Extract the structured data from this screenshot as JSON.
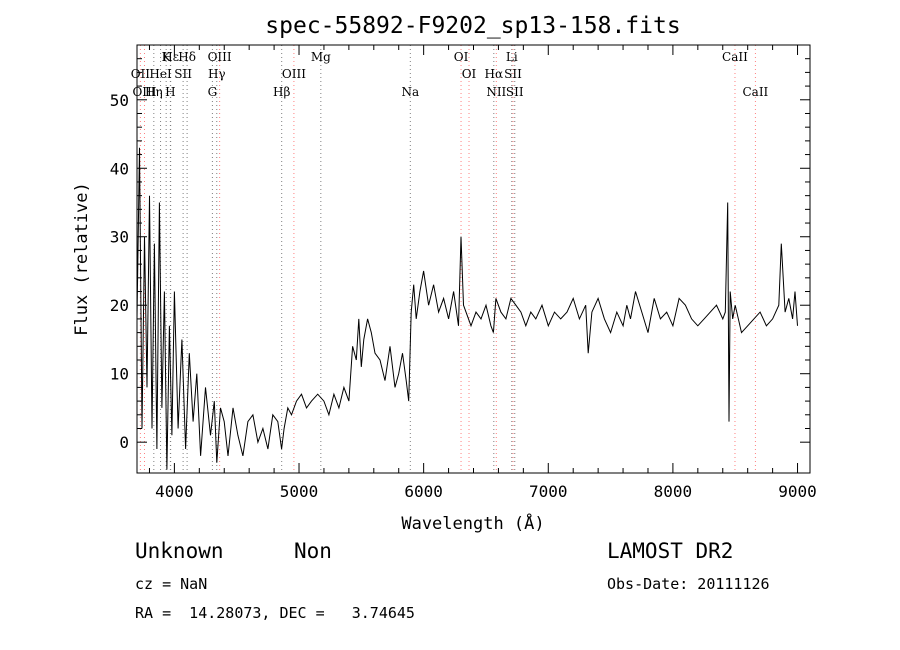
{
  "chart_data": {
    "type": "line",
    "title": "spec-55892-F9202_sp13-158.fits",
    "xlabel": "Wavelength (Å)",
    "ylabel": "Flux (relative)",
    "xlim": [
      3700,
      9100
    ],
    "ylim": [
      -4.5,
      58
    ],
    "xticks": [
      4000,
      5000,
      6000,
      7000,
      8000,
      9000
    ],
    "yticks": [
      0,
      10,
      20,
      30,
      40,
      50
    ],
    "grid": false,
    "series": [
      {
        "color": "#000000",
        "x": [
          3700,
          3720,
          3740,
          3760,
          3780,
          3800,
          3820,
          3840,
          3860,
          3880,
          3900,
          3920,
          3940,
          3960,
          3980,
          4000,
          4030,
          4060,
          4090,
          4120,
          4150,
          4180,
          4210,
          4250,
          4290,
          4320,
          4340,
          4370,
          4400,
          4430,
          4470,
          4510,
          4550,
          4590,
          4630,
          4670,
          4710,
          4750,
          4790,
          4830,
          4860,
          4880,
          4910,
          4940,
          4980,
          5020,
          5060,
          5100,
          5150,
          5200,
          5240,
          5280,
          5320,
          5360,
          5400,
          5430,
          5460,
          5480,
          5500,
          5520,
          5550,
          5580,
          5610,
          5650,
          5690,
          5730,
          5770,
          5800,
          5830,
          5860,
          5880,
          5900,
          5920,
          5940,
          5970,
          6000,
          6040,
          6080,
          6120,
          6160,
          6200,
          6240,
          6280,
          6300,
          6320,
          6340,
          6380,
          6420,
          6460,
          6500,
          6540,
          6560,
          6580,
          6620,
          6660,
          6700,
          6740,
          6780,
          6820,
          6860,
          6900,
          6950,
          7000,
          7050,
          7100,
          7150,
          7200,
          7250,
          7300,
          7320,
          7350,
          7400,
          7450,
          7500,
          7550,
          7600,
          7630,
          7660,
          7700,
          7750,
          7800,
          7850,
          7900,
          7950,
          8000,
          8050,
          8100,
          8150,
          8200,
          8250,
          8300,
          8350,
          8400,
          8420,
          8440,
          8450,
          8460,
          8480,
          8500,
          8550,
          8600,
          8650,
          8700,
          8750,
          8800,
          8850,
          8870,
          8900,
          8930,
          8960,
          8980,
          9000
        ],
        "y": [
          18,
          43,
          2,
          30,
          8,
          36,
          2,
          29,
          -1,
          35,
          5,
          22,
          -4,
          17,
          1,
          22,
          2,
          15,
          -1,
          13,
          3,
          10,
          -2,
          8,
          1,
          6,
          -3,
          5,
          3,
          -2,
          5,
          1,
          -2,
          3,
          4,
          0,
          2,
          -1,
          4,
          3,
          -1,
          2,
          5,
          4,
          6,
          7,
          5,
          6,
          7,
          6,
          4,
          7,
          5,
          8,
          6,
          14,
          12,
          18,
          11,
          15,
          18,
          16,
          13,
          12,
          9,
          14,
          8,
          10,
          13,
          9,
          6,
          19,
          23,
          18,
          22,
          25,
          20,
          23,
          19,
          21,
          18,
          22,
          17,
          30,
          20,
          19,
          17,
          19,
          18,
          20,
          17,
          16,
          21,
          19,
          18,
          21,
          20,
          19,
          17,
          19,
          18,
          20,
          17,
          19,
          18,
          19,
          21,
          18,
          20,
          13,
          19,
          21,
          18,
          16,
          19,
          17,
          20,
          18,
          22,
          19,
          16,
          21,
          18,
          19,
          17,
          21,
          20,
          18,
          17,
          18,
          19,
          20,
          18,
          19,
          35,
          3,
          22,
          18,
          20,
          16,
          17,
          18,
          19,
          17,
          18,
          20,
          29,
          19,
          21,
          18,
          22,
          17
        ]
      }
    ],
    "line_markers": [
      {
        "name": "Hε",
        "wavelength": 3970,
        "color": "#808080",
        "row": 1
      },
      {
        "name": "K",
        "wavelength": 3934,
        "color": "#808080",
        "row": 1
      },
      {
        "name": "Hδ",
        "wavelength": 4102,
        "color": "#808080",
        "row": 1
      },
      {
        "name": "OIII",
        "wavelength": 4363,
        "color": "#ff8080",
        "row": 1
      },
      {
        "name": "Mg",
        "wavelength": 5175,
        "color": "#808080",
        "row": 1
      },
      {
        "name": "OI",
        "wavelength": 6300,
        "color": "#ff8080",
        "row": 1
      },
      {
        "name": "Li",
        "wavelength": 6707,
        "color": "#808080",
        "row": 1
      },
      {
        "name": "CaII",
        "wavelength": 8498,
        "color": "#ff8080",
        "row": 1
      },
      {
        "name": "OII",
        "wavelength": 3727,
        "color": "#ff8080",
        "row": 2
      },
      {
        "name": "HeI",
        "wavelength": 3889,
        "color": "#808080",
        "row": 2
      },
      {
        "name": "SII",
        "wavelength": 4070,
        "color": "#808080",
        "row": 2
      },
      {
        "name": "Hγ",
        "wavelength": 4340,
        "color": "#808080",
        "row": 2
      },
      {
        "name": "OIII",
        "wavelength": 4959,
        "color": "#ff8080",
        "row": 2
      },
      {
        "name": "OI",
        "wavelength": 6364,
        "color": "#ff8080",
        "row": 2
      },
      {
        "name": "Hα",
        "wavelength": 6563,
        "color": "#808080",
        "row": 2
      },
      {
        "name": "SII",
        "wavelength": 6717,
        "color": "#ff8080",
        "row": 2
      },
      {
        "name": "OIII",
        "wavelength": 3760,
        "color": "#ff8080",
        "row": 3
      },
      {
        "name": "Hη",
        "wavelength": 3835,
        "color": "#808080",
        "row": 3
      },
      {
        "name": "H",
        "wavelength": 3968,
        "color": "#808080",
        "row": 3
      },
      {
        "name": "G",
        "wavelength": 4305,
        "color": "#808080",
        "row": 3
      },
      {
        "name": "Hβ",
        "wavelength": 4861,
        "color": "#808080",
        "row": 3
      },
      {
        "name": "Na",
        "wavelength": 5893,
        "color": "#808080",
        "row": 3
      },
      {
        "name": "NII",
        "wavelength": 6583,
        "color": "#ff8080",
        "row": 3
      },
      {
        "name": "SII",
        "wavelength": 6731,
        "color": "#808080",
        "row": 3
      },
      {
        "name": "CaII",
        "wavelength": 8662,
        "color": "#ff8080",
        "row": 3
      }
    ]
  },
  "info": {
    "class": "Unknown",
    "subclass": "Non",
    "survey": "LAMOST DR2",
    "cz": "cz = NaN",
    "obs_date": "Obs-Date: 20111126",
    "coords": "RA =  14.28073, DEC =   3.74645"
  }
}
